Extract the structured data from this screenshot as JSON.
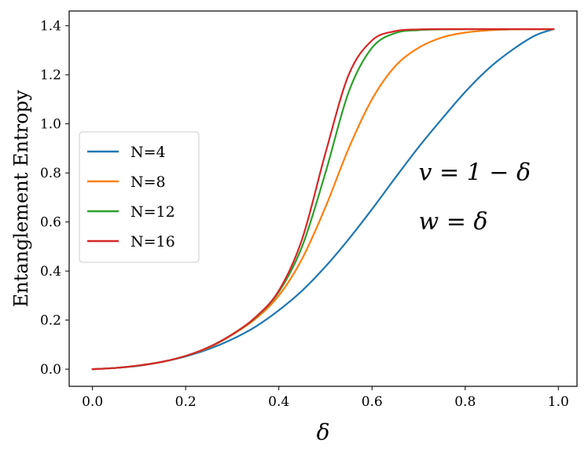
{
  "chart_data": {
    "type": "line",
    "xlabel": "δ",
    "ylabel": "Entanglement Entropy",
    "xlim": [
      -0.05,
      1.04
    ],
    "ylim": [
      -0.07,
      1.46
    ],
    "xticks": [
      0.0,
      0.2,
      0.4,
      0.6,
      0.8,
      1.0
    ],
    "xtick_labels": [
      "0.0",
      "0.2",
      "0.4",
      "0.6",
      "0.8",
      "1.0"
    ],
    "yticks": [
      0.0,
      0.2,
      0.4,
      0.6,
      0.8,
      1.0,
      1.2,
      1.4
    ],
    "ytick_labels": [
      "0.0",
      "0.2",
      "0.4",
      "0.6",
      "0.8",
      "1.0",
      "1.2",
      "1.4"
    ],
    "grid": false,
    "legend_position": "center-left",
    "x": [
      0.0,
      0.05,
      0.1,
      0.15,
      0.2,
      0.25,
      0.3,
      0.35,
      0.4,
      0.45,
      0.5,
      0.55,
      0.6,
      0.65,
      0.7,
      0.75,
      0.8,
      0.85,
      0.9,
      0.95,
      0.99
    ],
    "series": [
      {
        "name": "N=4",
        "color": "#1f77b4",
        "values": [
          0.0,
          0.005,
          0.014,
          0.03,
          0.052,
          0.082,
          0.122,
          0.173,
          0.24,
          0.32,
          0.418,
          0.53,
          0.652,
          0.78,
          0.905,
          1.02,
          1.13,
          1.225,
          1.3,
          1.36,
          1.386
        ]
      },
      {
        "name": "N=8",
        "color": "#ff7f0e",
        "values": [
          0.0,
          0.005,
          0.015,
          0.03,
          0.054,
          0.088,
          0.14,
          0.205,
          0.3,
          0.45,
          0.66,
          0.9,
          1.1,
          1.235,
          1.31,
          1.352,
          1.372,
          1.381,
          1.385,
          1.386,
          1.386
        ]
      },
      {
        "name": "N=12",
        "color": "#2ca02c",
        "values": [
          0.0,
          0.005,
          0.015,
          0.03,
          0.054,
          0.09,
          0.142,
          0.21,
          0.315,
          0.5,
          0.8,
          1.13,
          1.31,
          1.37,
          1.382,
          1.385,
          1.386,
          1.386,
          1.386,
          1.386,
          1.386
        ]
      },
      {
        "name": "N=16",
        "color": "#d62728",
        "values": [
          0.0,
          0.005,
          0.015,
          0.03,
          0.054,
          0.09,
          0.142,
          0.212,
          0.32,
          0.53,
          0.88,
          1.2,
          1.34,
          1.378,
          1.385,
          1.386,
          1.386,
          1.386,
          1.386,
          1.386,
          1.386
        ]
      }
    ],
    "annotations": [
      {
        "text": "v = 1 − δ",
        "x": 0.7,
        "y": 0.77
      },
      {
        "text": "w = δ",
        "x": 0.7,
        "y": 0.57
      }
    ]
  }
}
